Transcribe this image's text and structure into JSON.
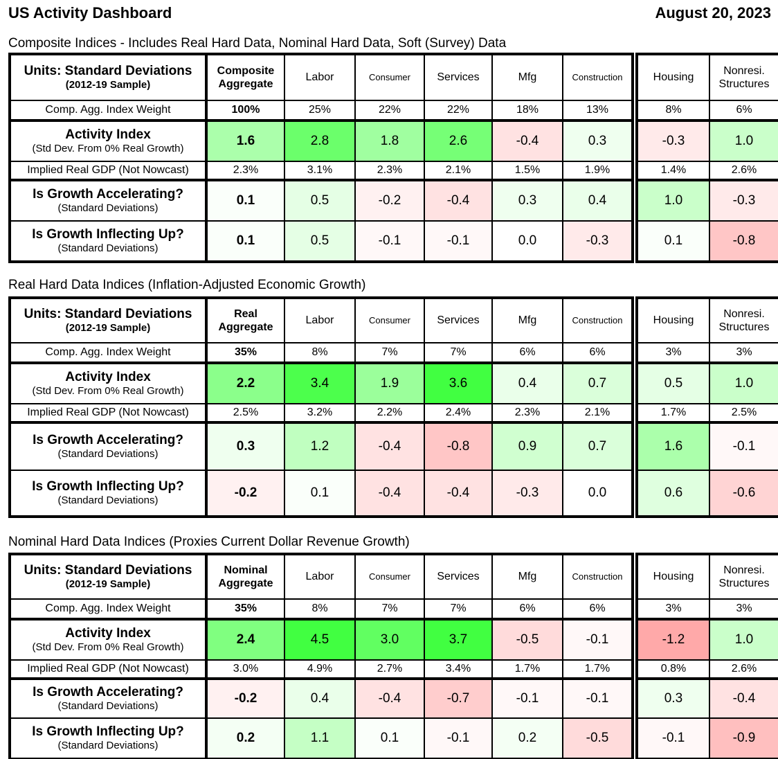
{
  "header": {
    "title": "US Activity Dashboard",
    "date": "August 20, 2023"
  },
  "row_labels": {
    "units": "Units: Standard Deviations",
    "units_sub": "(2012-19 Sample)",
    "weight": "Comp. Agg. Index Weight",
    "activity": "Activity Index",
    "activity_sub": "(Std Dev. From 0% Real Growth)",
    "gdp": "Implied Real GDP (Not Nowcast)",
    "accel": "Is Growth Accelerating?",
    "accel_sub": "(Standard Deviations)",
    "inflect": "Is Growth Inflecting Up?",
    "inflect_sub": "(Standard Deviations)"
  },
  "columns": [
    "Labor",
    "Consumer",
    "Services",
    "Mfg",
    "Construction",
    "Housing",
    "Nonresi. Structures"
  ],
  "colors": {
    "positive_max": "#44ff44",
    "negative_max": "#ff9090"
  },
  "sections": [
    {
      "title": "Composite Indices - Includes Real Hard Data, Nominal Hard Data, Soft (Survey) Data",
      "aggregate": "Composite Aggregate",
      "weight": [
        "100%",
        "25%",
        "22%",
        "22%",
        "18%",
        "13%",
        "8%",
        "6%"
      ],
      "activity": [
        1.6,
        2.8,
        1.8,
        2.6,
        -0.4,
        0.3,
        -0.3,
        1.0
      ],
      "gdp": [
        "2.3%",
        "3.1%",
        "2.3%",
        "2.1%",
        "1.5%",
        "1.9%",
        "1.4%",
        "2.6%"
      ],
      "accel": [
        0.1,
        0.5,
        -0.2,
        -0.4,
        0.3,
        0.4,
        1.0,
        -0.3
      ],
      "inflect": [
        0.1,
        0.5,
        -0.1,
        -0.1,
        0.0,
        -0.3,
        0.1,
        -0.8
      ]
    },
    {
      "title": "Real Hard Data Indices (Inflation-Adjusted Economic Growth)",
      "aggregate": "Real Aggregate",
      "weight": [
        "35%",
        "8%",
        "7%",
        "7%",
        "6%",
        "6%",
        "3%",
        "3%"
      ],
      "activity": [
        2.2,
        3.4,
        1.9,
        3.6,
        0.4,
        0.7,
        0.5,
        1.0
      ],
      "gdp": [
        "2.5%",
        "3.2%",
        "2.2%",
        "2.4%",
        "2.3%",
        "2.1%",
        "1.7%",
        "2.5%"
      ],
      "accel": [
        0.3,
        1.2,
        -0.4,
        -0.8,
        0.9,
        0.7,
        1.6,
        -0.1
      ],
      "inflect": [
        -0.2,
        0.1,
        -0.4,
        -0.4,
        -0.3,
        0.0,
        0.6,
        -0.6
      ]
    },
    {
      "title": "Nominal Hard Data Indices (Proxies Current Dollar Revenue Growth)",
      "aggregate": "Nominal Aggregate",
      "weight": [
        "35%",
        "8%",
        "7%",
        "7%",
        "6%",
        "6%",
        "3%",
        "3%"
      ],
      "activity": [
        2.4,
        4.5,
        3.0,
        3.7,
        -0.5,
        -0.1,
        -1.2,
        1.0
      ],
      "gdp": [
        "3.0%",
        "4.9%",
        "2.7%",
        "3.4%",
        "1.7%",
        "1.7%",
        "0.8%",
        "2.6%"
      ],
      "accel": [
        -0.2,
        0.4,
        -0.4,
        -0.7,
        -0.1,
        -0.1,
        0.3,
        -0.4
      ],
      "inflect": [
        0.2,
        1.1,
        0.1,
        -0.1,
        0.2,
        -0.5,
        -0.1,
        -0.9
      ]
    }
  ]
}
